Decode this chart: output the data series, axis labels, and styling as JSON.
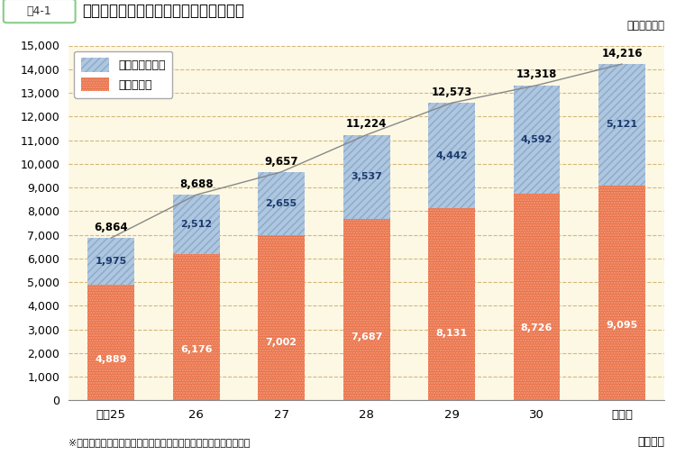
{
  "title_box": "围4-1",
  "title_main": "年度別再任用職員数（給与法適用職員）",
  "unit_label": "（単位：人）",
  "categories": [
    "平成25",
    "26",
    "27",
    "28",
    "29",
    "30",
    "令和元"
  ],
  "xlabel": "（年度）",
  "fulltime": [
    1975,
    2512,
    2655,
    3537,
    4442,
    4592,
    5121
  ],
  "parttime": [
    4889,
    6176,
    7002,
    7687,
    8131,
    8726,
    9095
  ],
  "totals": [
    6864,
    8688,
    9657,
    11224,
    12573,
    13318,
    14216
  ],
  "fulltime_color": "#aec6e0",
  "parttime_color": "#e8724a",
  "line_color": "#888888",
  "bg_color": "#fdf8e4",
  "grid_color": "#d4b87a",
  "ylim": [
    0,
    15000
  ],
  "yticks": [
    0,
    1000,
    2000,
    3000,
    4000,
    5000,
    6000,
    7000,
    8000,
    9000,
    10000,
    11000,
    12000,
    13000,
    14000,
    15000
  ],
  "legend_fulltime": "フルタイム勤務",
  "legend_parttime": "短時間勤務",
  "footnote": "※令和元年度の数値は、令和元年５月現在の値で、予定者を含む。",
  "bar_width": 0.55
}
